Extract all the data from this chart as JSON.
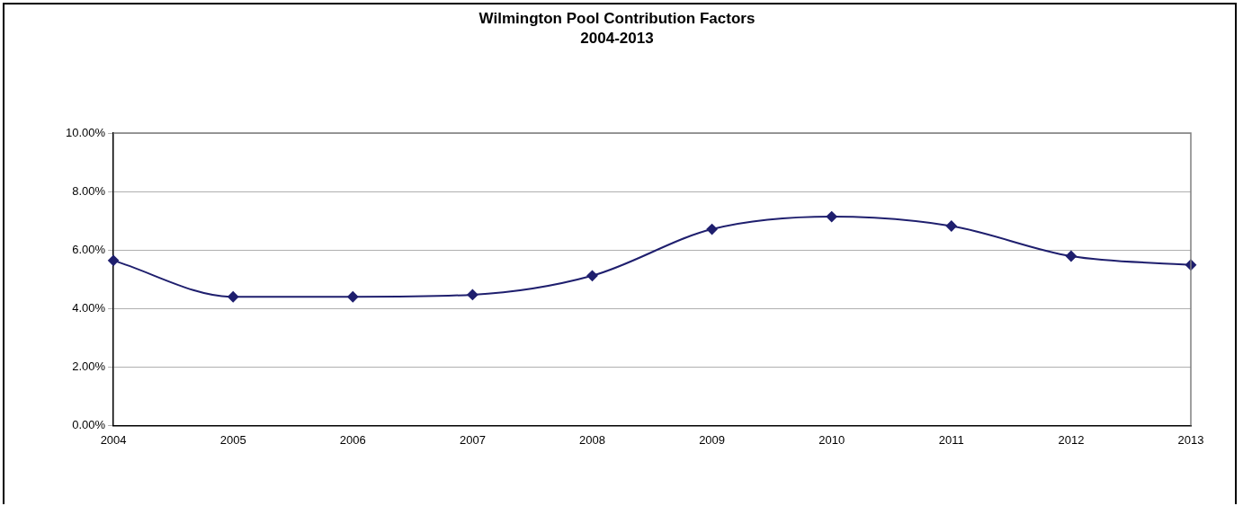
{
  "chart_data": {
    "type": "line",
    "title": "Wilmington Pool Contribution Factors",
    "subtitle": "2004-2013",
    "categories": [
      "2004",
      "2005",
      "2006",
      "2007",
      "2008",
      "2009",
      "2010",
      "2011",
      "2012",
      "2013"
    ],
    "series": [
      {
        "color": "#1f1f6e",
        "values": [
          5.64,
          4.4,
          4.4,
          4.47,
          5.12,
          6.71,
          7.14,
          6.82,
          5.79,
          5.49
        ]
      }
    ],
    "ylim": [
      0,
      10
    ],
    "yticks": [
      {
        "value": 0,
        "label": "0.00%"
      },
      {
        "value": 2,
        "label": "2.00%"
      },
      {
        "value": 4,
        "label": "4.00%"
      },
      {
        "value": 6,
        "label": "6.00%"
      },
      {
        "value": 8,
        "label": "8.00%"
      },
      {
        "value": 10,
        "label": "10.00%"
      }
    ],
    "grid": "y",
    "legend": false,
    "marker": "diamond",
    "line_style": "solid"
  }
}
